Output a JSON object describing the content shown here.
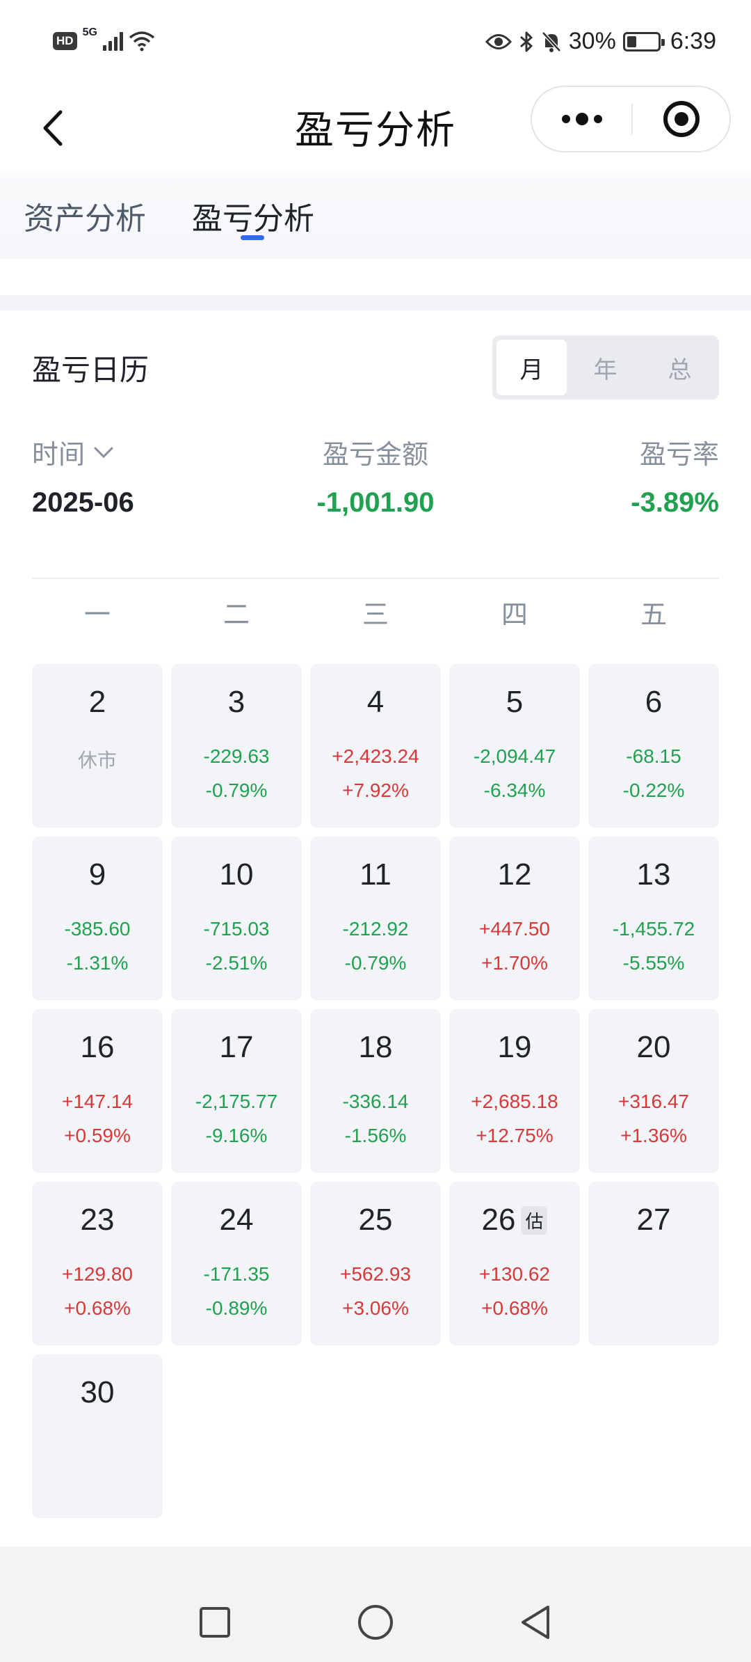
{
  "status_bar": {
    "hd": "HD",
    "network": "5G",
    "battery": "30%",
    "battery_level": 0.3,
    "time": "6:39",
    "icons": [
      "eye-icon",
      "bluetooth-icon",
      "mute-bell-icon",
      "battery-icon"
    ]
  },
  "navbar": {
    "title": "盈亏分析",
    "icons": [
      "back-icon",
      "more-icon",
      "close-circle-icon"
    ]
  },
  "tabs": [
    {
      "label": "资产分析",
      "active": false
    },
    {
      "label": "盈亏分析",
      "active": true
    }
  ],
  "card": {
    "title": "盈亏日历",
    "segments": [
      {
        "label": "月",
        "active": true
      },
      {
        "label": "年",
        "active": false
      },
      {
        "label": "总",
        "active": false
      }
    ],
    "summary": {
      "time_label": "时间",
      "amount_label": "盈亏金额",
      "rate_label": "盈亏率",
      "period": "2025-06",
      "amount": "-1,001.90",
      "rate": "-3.89%"
    },
    "weekdays": [
      "一",
      "二",
      "三",
      "四",
      "五"
    ],
    "days": [
      {
        "day": "2",
        "closed": "休市"
      },
      {
        "day": "3",
        "amount": "-229.63",
        "rate": "-0.79%"
      },
      {
        "day": "4",
        "amount": "+2,423.24",
        "rate": "+7.92%"
      },
      {
        "day": "5",
        "amount": "-2,094.47",
        "rate": "-6.34%"
      },
      {
        "day": "6",
        "amount": "-68.15",
        "rate": "-0.22%"
      },
      {
        "day": "9",
        "amount": "-385.60",
        "rate": "-1.31%"
      },
      {
        "day": "10",
        "amount": "-715.03",
        "rate": "-2.51%"
      },
      {
        "day": "11",
        "amount": "-212.92",
        "rate": "-0.79%"
      },
      {
        "day": "12",
        "amount": "+447.50",
        "rate": "+1.70%"
      },
      {
        "day": "13",
        "amount": "-1,455.72",
        "rate": "-5.55%"
      },
      {
        "day": "16",
        "amount": "+147.14",
        "rate": "+0.59%"
      },
      {
        "day": "17",
        "amount": "-2,175.77",
        "rate": "-9.16%"
      },
      {
        "day": "18",
        "amount": "-336.14",
        "rate": "-1.56%"
      },
      {
        "day": "19",
        "amount": "+2,685.18",
        "rate": "+12.75%"
      },
      {
        "day": "20",
        "amount": "+316.47",
        "rate": "+1.36%"
      },
      {
        "day": "23",
        "amount": "+129.80",
        "rate": "+0.68%"
      },
      {
        "day": "24",
        "amount": "-171.35",
        "rate": "-0.89%"
      },
      {
        "day": "25",
        "amount": "+562.93",
        "rate": "+3.06%"
      },
      {
        "day": "26",
        "badge": "估",
        "amount": "+130.62",
        "rate": "+0.68%"
      },
      {
        "day": "27"
      },
      {
        "day": "30"
      }
    ]
  },
  "colors": {
    "gain": "#d93838",
    "loss": "#20a150",
    "accent": "#2f6bf2"
  },
  "system_nav": [
    "recents-icon",
    "home-icon",
    "back-triangle-icon"
  ]
}
